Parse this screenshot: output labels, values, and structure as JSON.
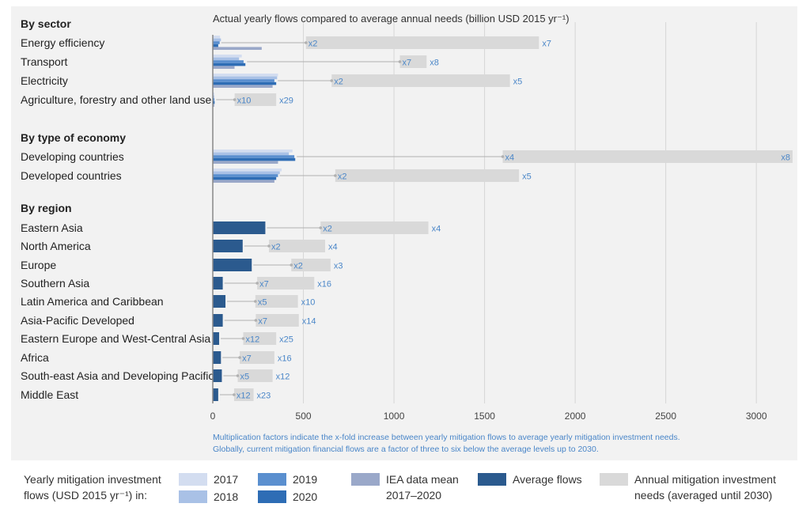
{
  "chart_data": {
    "type": "bar",
    "orientation": "horizontal",
    "title": "Actual yearly flows compared to average annual needs (billion USD 2015 yr⁻¹)",
    "xlim": [
      0,
      3200
    ],
    "xticks": [
      0,
      500,
      1000,
      1500,
      2000,
      2500,
      3000
    ],
    "grid": true,
    "groups": [
      {
        "heading": "By sector",
        "mode": "yearly",
        "rows": [
          {
            "label": "Energy efficiency",
            "flows": {
              "2017": 40,
              "2018": 45,
              "2019": 38,
              "2020": 30,
              "iea": 270
            },
            "needs": 1800,
            "factor_low": "x2",
            "factor_high": "x7"
          },
          {
            "label": "Transport",
            "flows": {
              "2017": 160,
              "2018": 145,
              "2019": 170,
              "2020": 180,
              "iea": 120
            },
            "needs": 1180,
            "factor_low": "x7",
            "factor_high": "x8"
          },
          {
            "label": "Electricity",
            "flows": {
              "2017": 360,
              "2018": 355,
              "2019": 340,
              "2020": 350,
              "iea": 330
            },
            "needs": 1640,
            "factor_low": "x2",
            "factor_high": "x5"
          },
          {
            "label": "Agriculture, forestry and other land use",
            "flows": {
              "2017": 8,
              "2018": 8,
              "2019": 9,
              "2020": 10,
              "iea": 8
            },
            "needs": 350,
            "factor_low": "x10",
            "factor_high": "x29"
          }
        ]
      },
      {
        "heading": "By type of economy",
        "mode": "yearly",
        "rows": [
          {
            "label": "Developing countries",
            "flows": {
              "2017": 440,
              "2018": 420,
              "2019": 450,
              "2020": 455,
              "iea": 360
            },
            "needs": 3200,
            "factor_low": "x4",
            "factor_high": "x8"
          },
          {
            "label": "Developed countries",
            "flows": {
              "2017": 380,
              "2018": 370,
              "2019": 360,
              "2020": 350,
              "iea": 340
            },
            "needs": 1690,
            "factor_low": "x2",
            "factor_high": "x5"
          }
        ]
      },
      {
        "heading": "By region",
        "mode": "average",
        "rows": [
          {
            "label": "Eastern Asia",
            "average": 290,
            "needs": 1190,
            "factor_low": "x2",
            "factor_high": "x4"
          },
          {
            "label": "North America",
            "average": 165,
            "needs": 620,
            "factor_low": "x2",
            "factor_high": "x4"
          },
          {
            "label": "Europe",
            "average": 215,
            "needs": 650,
            "factor_low": "x2",
            "factor_high": "x3"
          },
          {
            "label": "Southern Asia",
            "average": 55,
            "needs": 560,
            "factor_low": "x7",
            "factor_high": "x16"
          },
          {
            "label": "Latin America and Caribbean",
            "average": 70,
            "needs": 470,
            "factor_low": "x5",
            "factor_high": "x10"
          },
          {
            "label": "Asia-Pacific Developed",
            "average": 55,
            "needs": 475,
            "factor_low": "x7",
            "factor_high": "x14"
          },
          {
            "label": "Eastern Europe and West-Central Asia",
            "average": 35,
            "needs": 350,
            "factor_low": "x12",
            "factor_high": "x25"
          },
          {
            "label": "Africa",
            "average": 45,
            "needs": 340,
            "factor_low": "x7",
            "factor_high": "x16"
          },
          {
            "label": "South-east Asia and Developing Pacific",
            "average": 50,
            "needs": 330,
            "factor_low": "x5",
            "factor_high": "x12"
          },
          {
            "label": "Middle East",
            "average": 30,
            "needs": 225,
            "factor_low": "x12",
            "factor_high": "x23"
          }
        ]
      }
    ],
    "footnote": [
      "Multiplication factors indicate the x-fold increase between yearly mitigation flows to average yearly mitigation investment needs.",
      "Globally, current mitigation financial flows are a factor of three to six below the average levels up to 2030."
    ],
    "colors": {
      "2017": "#d3ddf0",
      "2018": "#a9c1e6",
      "2019": "#5a8fcf",
      "2020": "#2e6db5",
      "iea": "#9aa8c9",
      "average": "#2b5a8e",
      "needs": "#d9d9d9",
      "factor_text": "#4a86c8",
      "grid": "#d6d6d6"
    },
    "legend": {
      "title_line1": "Yearly mitigation investment",
      "title_line2": "flows (USD 2015 yr⁻¹) in:",
      "y2017": "2017",
      "y2018": "2018",
      "y2019": "2019",
      "y2020": "2020",
      "iea_line1": "IEA data mean",
      "iea_line2": "2017–2020",
      "average": "Average flows",
      "needs_line1": "Annual mitigation investment",
      "needs_line2": "needs (averaged until 2030)"
    }
  }
}
